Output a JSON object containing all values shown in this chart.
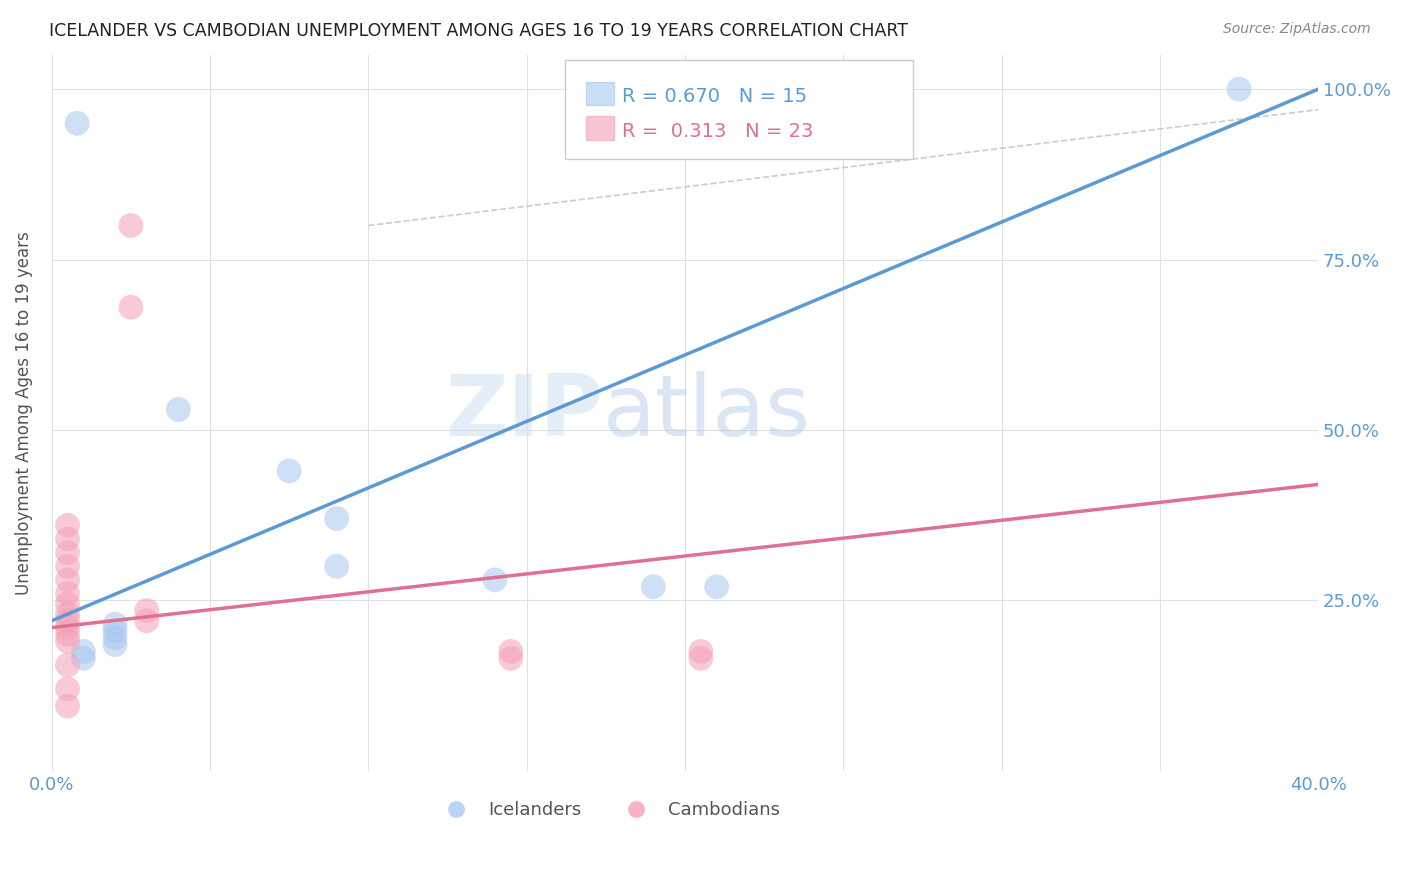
{
  "title": "ICELANDER VS CAMBODIAN UNEMPLOYMENT AMONG AGES 16 TO 19 YEARS CORRELATION CHART",
  "source": "Source: ZipAtlas.com",
  "ylabel": "Unemployment Among Ages 16 to 19 years",
  "xlim": [
    0.0,
    0.4
  ],
  "ylim": [
    0.0,
    1.05
  ],
  "x_ticks": [
    0.0,
    0.05,
    0.1,
    0.15,
    0.2,
    0.25,
    0.3,
    0.35,
    0.4
  ],
  "x_tick_labels": [
    "0.0%",
    "",
    "",
    "",
    "",
    "",
    "",
    "",
    "40.0%"
  ],
  "y_ticks": [
    0.0,
    0.25,
    0.5,
    0.75,
    1.0
  ],
  "y_tick_labels": [
    "",
    "25.0%",
    "50.0%",
    "75.0%",
    "100.0%"
  ],
  "icelander_color": "#a8c8f0",
  "cambodian_color": "#f4a0b5",
  "icelander_R": 0.67,
  "icelander_N": 15,
  "cambodian_R": 0.313,
  "cambodian_N": 23,
  "icelander_line_x": [
    0.0,
    0.4
  ],
  "icelander_line_y": [
    0.22,
    1.0
  ],
  "cambodian_line_x": [
    0.0,
    0.4
  ],
  "cambodian_line_y": [
    0.21,
    0.42
  ],
  "diagonal_line_x": [
    0.1,
    0.4
  ],
  "diagonal_line_y": [
    0.8,
    0.97
  ],
  "icelander_points": [
    [
      0.008,
      0.95
    ],
    [
      0.375,
      1.0
    ],
    [
      0.04,
      0.53
    ],
    [
      0.075,
      0.44
    ],
    [
      0.09,
      0.37
    ],
    [
      0.09,
      0.3
    ],
    [
      0.14,
      0.28
    ],
    [
      0.19,
      0.27
    ],
    [
      0.21,
      0.27
    ],
    [
      0.02,
      0.215
    ],
    [
      0.02,
      0.205
    ],
    [
      0.02,
      0.195
    ],
    [
      0.02,
      0.185
    ],
    [
      0.01,
      0.175
    ],
    [
      0.01,
      0.165
    ]
  ],
  "cambodian_points": [
    [
      0.025,
      0.8
    ],
    [
      0.025,
      0.68
    ],
    [
      0.005,
      0.36
    ],
    [
      0.005,
      0.34
    ],
    [
      0.005,
      0.32
    ],
    [
      0.005,
      0.3
    ],
    [
      0.005,
      0.28
    ],
    [
      0.005,
      0.26
    ],
    [
      0.005,
      0.245
    ],
    [
      0.005,
      0.23
    ],
    [
      0.005,
      0.22
    ],
    [
      0.005,
      0.21
    ],
    [
      0.005,
      0.2
    ],
    [
      0.005,
      0.19
    ],
    [
      0.005,
      0.155
    ],
    [
      0.005,
      0.12
    ],
    [
      0.005,
      0.095
    ],
    [
      0.03,
      0.235
    ],
    [
      0.03,
      0.22
    ],
    [
      0.145,
      0.175
    ],
    [
      0.145,
      0.165
    ],
    [
      0.205,
      0.175
    ],
    [
      0.205,
      0.165
    ]
  ],
  "watermark_zip": "ZIP",
  "watermark_atlas": "atlas",
  "icelander_line_color": "#5b9bd5",
  "cambodian_line_color": "#e07090",
  "diagonal_line_color": "#cccccc"
}
